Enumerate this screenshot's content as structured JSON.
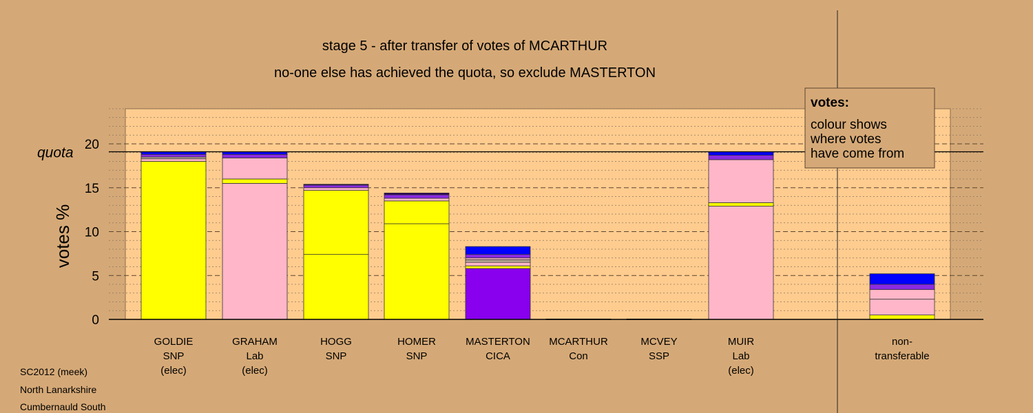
{
  "chart_data": {
    "type": "bar",
    "stacked": true,
    "title": "stage 5 - after transfer of votes of MCARTHUR",
    "subtitle": "no-one else has achieved the quota, so exclude MASTERTON",
    "ylabel": "votes %",
    "ylim": [
      0,
      24
    ],
    "yticks": [
      0,
      5,
      10,
      15,
      20
    ],
    "quota": 19.1,
    "quota_label": "quota",
    "legend": {
      "title": "votes:",
      "lines": [
        "colour shows",
        "where votes",
        "have come from"
      ],
      "placement": "top-right"
    },
    "colors": {
      "background": "#d5a977",
      "plot_background": "#ffcc8f",
      "snp": "#ffff00",
      "lab": "#ffb6c8",
      "cica": "#8800ee",
      "blue": "#0000ff",
      "violet": "#8a2be2",
      "dark": "#330066",
      "grey": "#bbaa99"
    },
    "categories": [
      {
        "lines": [
          "GOLDIE",
          "SNP",
          "(elec)"
        ],
        "segments": [
          {
            "value": 18.0,
            "color": "#ffff00"
          },
          {
            "value": 0.3,
            "color": "#ffb6c8"
          },
          {
            "value": 0.2,
            "color": "#bbaa99"
          },
          {
            "value": 0.3,
            "color": "#8a2be2"
          },
          {
            "value": 0.3,
            "color": "#0000ff"
          }
        ]
      },
      {
        "lines": [
          "GRAHAM",
          "Lab",
          "(elec)"
        ],
        "segments": [
          {
            "value": 15.5,
            "color": "#ffb6c8"
          },
          {
            "value": 0.5,
            "color": "#ffff00"
          },
          {
            "value": 2.4,
            "color": "#ffb6c8"
          },
          {
            "value": 0.4,
            "color": "#8a2be2"
          },
          {
            "value": 0.3,
            "color": "#0000ff"
          }
        ]
      },
      {
        "lines": [
          "HOGG",
          "SNP"
        ],
        "segments": [
          {
            "value": 7.4,
            "color": "#ffff00"
          },
          {
            "value": 7.3,
            "color": "#ffff00"
          },
          {
            "value": 0.3,
            "color": "#ffb6c8"
          },
          {
            "value": 0.3,
            "color": "#8a2be2"
          },
          {
            "value": 0.1,
            "color": "#330066"
          }
        ]
      },
      {
        "lines": [
          "HOMER",
          "SNP"
        ],
        "segments": [
          {
            "value": 10.9,
            "color": "#ffff00"
          },
          {
            "value": 2.6,
            "color": "#ffff00"
          },
          {
            "value": 0.3,
            "color": "#ffb6c8"
          },
          {
            "value": 0.4,
            "color": "#8a2be2"
          },
          {
            "value": 0.2,
            "color": "#330066"
          }
        ]
      },
      {
        "lines": [
          "MASTERTON",
          "CICA"
        ],
        "segments": [
          {
            "value": 5.8,
            "color": "#8800ee"
          },
          {
            "value": 0.3,
            "color": "#ffff00"
          },
          {
            "value": 0.4,
            "color": "#ffb6c8"
          },
          {
            "value": 0.3,
            "color": "#bbaa99"
          },
          {
            "value": 0.2,
            "color": "#ffb6c8"
          },
          {
            "value": 0.4,
            "color": "#8a2be2"
          },
          {
            "value": 0.9,
            "color": "#0000ff"
          }
        ]
      },
      {
        "lines": [
          "MCARTHUR",
          "Con"
        ],
        "segments": [
          {
            "value": 0.05,
            "color": "#330066"
          }
        ]
      },
      {
        "lines": [
          "MCVEY",
          "SSP"
        ],
        "segments": [
          {
            "value": 0.05,
            "color": "#330066"
          }
        ]
      },
      {
        "lines": [
          "MUIR",
          "Lab",
          "(elec)"
        ],
        "segments": [
          {
            "value": 12.9,
            "color": "#ffb6c8"
          },
          {
            "value": 0.4,
            "color": "#ffff00"
          },
          {
            "value": 4.9,
            "color": "#ffb6c8"
          },
          {
            "value": 0.5,
            "color": "#8a2be2"
          },
          {
            "value": 0.4,
            "color": "#0000ff"
          }
        ]
      },
      {
        "lines": [
          "non-",
          "transferable"
        ],
        "segments": [
          {
            "value": 0.5,
            "color": "#ffff00"
          },
          {
            "value": 1.8,
            "color": "#ffb6c8"
          },
          {
            "value": 1.1,
            "color": "#ffb6c8"
          },
          {
            "value": 0.6,
            "color": "#8a2be2"
          },
          {
            "value": 1.2,
            "color": "#0000ff"
          }
        ]
      }
    ]
  },
  "footer": {
    "lines": [
      "SC2012 (meek)",
      "North Lanarkshire",
      "Cumbernauld South"
    ]
  }
}
